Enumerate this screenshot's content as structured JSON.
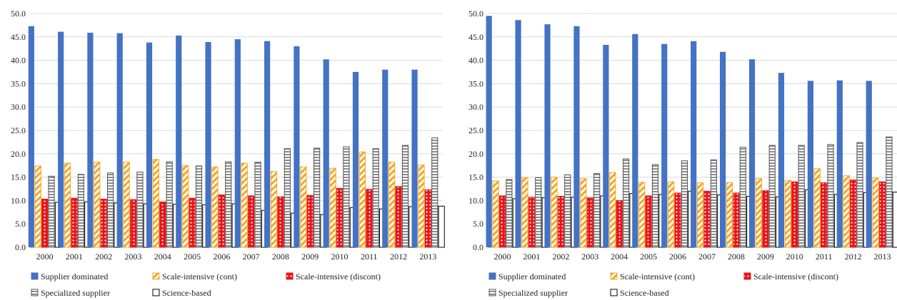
{
  "colors": {
    "supplier": "#4472C4",
    "scale_cont": "#F5A623",
    "scale_discont": "#E8141A",
    "specialized": "#8C8C8C",
    "science": "#000000"
  },
  "chart_data": [
    {
      "type": "bar",
      "categories": [
        "2000",
        "2001",
        "2002",
        "2003",
        "2004",
        "2005",
        "2006",
        "2007",
        "2008",
        "2009",
        "2010",
        "2011",
        "2012",
        "2013"
      ],
      "ylim": [
        0,
        50
      ],
      "yticks": [
        "0.0",
        "5.0",
        "10.0",
        "15.0",
        "20.0",
        "25.0",
        "30.0",
        "35.0",
        "40.0",
        "45.0",
        "50.0"
      ],
      "grid": true,
      "legend_position": "bottom",
      "series": [
        {
          "name": "Supplier dominated",
          "values": [
            47.3,
            46.1,
            45.9,
            45.8,
            43.8,
            45.3,
            43.9,
            44.5,
            44.1,
            43.0,
            40.2,
            37.5,
            38.0,
            38.0
          ]
        },
        {
          "name": "Scale-intensive (cont)",
          "values": [
            17.4,
            18.0,
            18.2,
            18.2,
            18.8,
            17.5,
            17.2,
            18.0,
            16.2,
            17.2,
            16.9,
            20.4,
            18.2,
            17.6
          ]
        },
        {
          "name": "Scale-intensive (discont)",
          "values": [
            10.3,
            10.5,
            10.3,
            10.2,
            9.7,
            10.5,
            11.2,
            11.0,
            10.8,
            11.1,
            12.6,
            12.4,
            13.0,
            12.3
          ]
        },
        {
          "name": "Specialized supplier",
          "values": [
            15.2,
            15.6,
            15.9,
            16.1,
            18.3,
            17.4,
            18.3,
            18.2,
            21.1,
            21.2,
            21.5,
            21.1,
            21.8,
            23.4
          ]
        },
        {
          "name": "Science-based",
          "values": [
            9.6,
            9.7,
            9.5,
            9.3,
            9.2,
            9.1,
            9.3,
            7.9,
            7.3,
            7.0,
            8.5,
            8.2,
            8.7,
            8.8
          ]
        }
      ]
    },
    {
      "type": "bar",
      "categories": [
        "2000",
        "2001",
        "2002",
        "2003",
        "2004",
        "2005",
        "2006",
        "2007",
        "2008",
        "2009",
        "2010",
        "2011",
        "2012",
        "2013"
      ],
      "ylim": [
        0,
        50
      ],
      "yticks": [
        "0.0",
        "5.0",
        "10.0",
        "15.0",
        "20.0",
        "25.0",
        "30.0",
        "35.0",
        "40.0",
        "45.0",
        "50.0"
      ],
      "grid": true,
      "legend_position": "bottom",
      "series": [
        {
          "name": "Supplier dominated",
          "values": [
            49.5,
            48.6,
            47.7,
            47.3,
            43.3,
            45.6,
            43.5,
            44.1,
            41.8,
            40.2,
            37.3,
            35.6,
            35.7,
            35.6
          ]
        },
        {
          "name": "Scale-intensive (cont)",
          "values": [
            14.2,
            14.9,
            15.0,
            14.7,
            16.0,
            13.9,
            14.0,
            13.8,
            13.8,
            14.7,
            14.3,
            16.8,
            15.3,
            14.8
          ]
        },
        {
          "name": "Scale-intensive (discont)",
          "values": [
            11.0,
            10.7,
            10.9,
            10.6,
            10.0,
            11.0,
            11.6,
            12.0,
            11.6,
            12.1,
            14.0,
            13.8,
            14.4,
            14.0
          ]
        },
        {
          "name": "Specialized supplier",
          "values": [
            14.5,
            14.9,
            15.5,
            15.8,
            18.9,
            17.7,
            18.5,
            18.7,
            21.4,
            21.8,
            21.8,
            22.0,
            22.4,
            23.6
          ]
        },
        {
          "name": "Science-based",
          "values": [
            10.4,
            10.6,
            10.7,
            11.0,
            11.5,
            11.3,
            12.0,
            11.2,
            10.9,
            10.8,
            12.3,
            11.3,
            11.7,
            11.8
          ]
        }
      ]
    }
  ]
}
